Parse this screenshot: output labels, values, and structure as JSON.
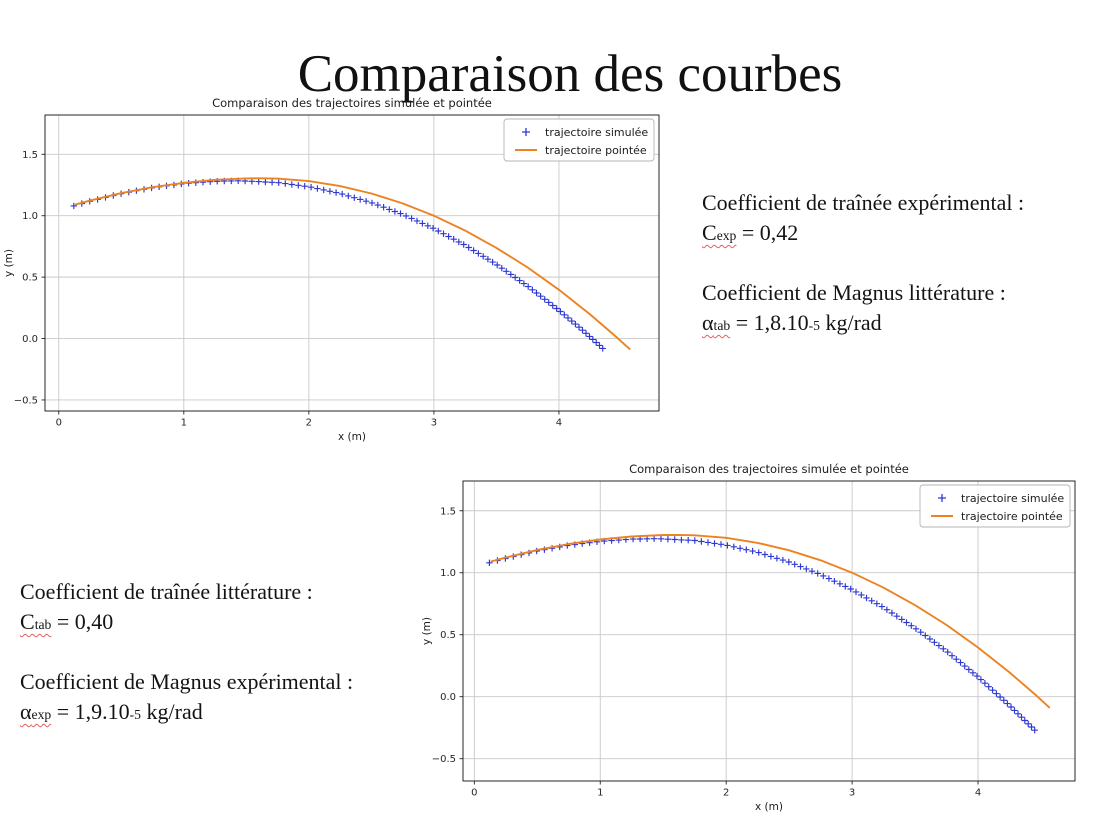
{
  "slide": {
    "title": "Comparaison des courbes",
    "background": "#ffffff"
  },
  "palette": {
    "simulated_blue": "#2f38d2",
    "pointed_orange": "#ec8321",
    "grid": "#c9c9c9",
    "spine": "#242424",
    "tick_text": "#262626",
    "squiggle": "#e35f5f",
    "body_text": "#141414"
  },
  "annotations": {
    "right": {
      "drag_label": "Coefficient de traînée expérimental :",
      "drag_symbol": "C",
      "drag_sub": "exp",
      "drag_value": " = 0,42",
      "magnus_label": "Coefficient de Magnus littérature :",
      "magnus_symbol": "α",
      "magnus_sub": "tab",
      "magnus_value_pre": " = 1,8.10",
      "magnus_exp": "-5",
      "magnus_unit": " kg/rad"
    },
    "left": {
      "drag_label": "Coefficient de traînée littérature :",
      "drag_symbol": "C",
      "drag_sub": "tab",
      "drag_value": " = 0,40",
      "magnus_label": "Coefficient de Magnus expérimental :",
      "magnus_symbol": "α",
      "magnus_sub": "exp",
      "magnus_value_pre": " = 1,9.10",
      "magnus_exp": "-5",
      "magnus_unit": " kg/rad"
    }
  },
  "chart_data": [
    {
      "id": "top-left",
      "type": "scatter",
      "title": "Comparaison des trajectoires simulée et pointée",
      "xlabel": "x (m)",
      "ylabel": "y (m)",
      "xlim": [
        -0.11,
        4.8
      ],
      "ylim": [
        -0.59,
        1.82
      ],
      "grid": true,
      "legend_position": "upper right",
      "xticks": [
        {
          "v": 0,
          "label": "0"
        },
        {
          "v": 1,
          "label": "1"
        },
        {
          "v": 2,
          "label": "2"
        },
        {
          "v": 3,
          "label": "3"
        },
        {
          "v": 4,
          "label": "4"
        }
      ],
      "yticks": [
        {
          "v": -0.5,
          "label": "−0.5"
        },
        {
          "v": 0.0,
          "label": "0.0"
        },
        {
          "v": 0.5,
          "label": "0.5"
        },
        {
          "v": 1.0,
          "label": "1.0"
        },
        {
          "v": 1.5,
          "label": "1.5"
        }
      ],
      "series": [
        {
          "name": "trajectoire simulée",
          "plot": "scatter",
          "marker": "+",
          "color": "#2f38d2",
          "n_markers": 95,
          "points": [
            [
              0.12,
              1.08
            ],
            [
              0.25,
              1.118
            ],
            [
              0.5,
              1.18
            ],
            [
              0.75,
              1.228
            ],
            [
              1.0,
              1.262
            ],
            [
              1.25,
              1.28
            ],
            [
              1.45,
              1.285
            ],
            [
              1.75,
              1.27
            ],
            [
              2.0,
              1.236
            ],
            [
              2.25,
              1.181
            ],
            [
              2.5,
              1.106
            ],
            [
              2.75,
              1.011
            ],
            [
              3.0,
              0.895
            ],
            [
              3.25,
              0.759
            ],
            [
              3.5,
              0.603
            ],
            [
              3.75,
              0.426
            ],
            [
              4.0,
              0.23
            ],
            [
              4.2,
              0.058
            ],
            [
              4.35,
              -0.08
            ]
          ]
        },
        {
          "name": "trajectoire pointée",
          "plot": "line",
          "color": "#ec8321",
          "points": [
            [
              0.13,
              1.09
            ],
            [
              0.25,
              1.123
            ],
            [
              0.5,
              1.184
            ],
            [
              0.75,
              1.232
            ],
            [
              1.0,
              1.268
            ],
            [
              1.25,
              1.292
            ],
            [
              1.5,
              1.304
            ],
            [
              1.62,
              1.305
            ],
            [
              1.75,
              1.302
            ],
            [
              2.0,
              1.282
            ],
            [
              2.25,
              1.241
            ],
            [
              2.5,
              1.181
            ],
            [
              2.75,
              1.1
            ],
            [
              3.0,
              1.0
            ],
            [
              3.25,
              0.879
            ],
            [
              3.5,
              0.738
            ],
            [
              3.75,
              0.578
            ],
            [
              4.0,
              0.397
            ],
            [
              4.25,
              0.196
            ],
            [
              4.45,
              0.021
            ],
            [
              4.57,
              -0.09
            ]
          ]
        }
      ]
    },
    {
      "id": "bottom-right",
      "type": "scatter",
      "title": "Comparaison des trajectoires simulée et pointée",
      "xlabel": "x (m)",
      "ylabel": "y (m)",
      "xlim": [
        -0.09,
        4.77
      ],
      "ylim": [
        -0.68,
        1.74
      ],
      "grid": true,
      "legend_position": "upper right",
      "xticks": [
        {
          "v": 0,
          "label": "0"
        },
        {
          "v": 1,
          "label": "1"
        },
        {
          "v": 2,
          "label": "2"
        },
        {
          "v": 3,
          "label": "3"
        },
        {
          "v": 4,
          "label": "4"
        }
      ],
      "yticks": [
        {
          "v": -0.5,
          "label": "−0.5"
        },
        {
          "v": 0.0,
          "label": "0.0"
        },
        {
          "v": 0.5,
          "label": "0.5"
        },
        {
          "v": 1.0,
          "label": "1.0"
        },
        {
          "v": 1.5,
          "label": "1.5"
        }
      ],
      "series": [
        {
          "name": "trajectoire simulée",
          "plot": "scatter",
          "marker": "+",
          "color": "#2f38d2",
          "n_markers": 98,
          "points": [
            [
              0.12,
              1.08
            ],
            [
              0.25,
              1.116
            ],
            [
              0.5,
              1.176
            ],
            [
              0.75,
              1.221
            ],
            [
              1.0,
              1.253
            ],
            [
              1.25,
              1.271
            ],
            [
              1.45,
              1.275
            ],
            [
              1.75,
              1.26
            ],
            [
              2.0,
              1.223
            ],
            [
              2.25,
              1.165
            ],
            [
              2.5,
              1.086
            ],
            [
              2.75,
              0.985
            ],
            [
              3.0,
              0.863
            ],
            [
              3.25,
              0.719
            ],
            [
              3.5,
              0.553
            ],
            [
              3.75,
              0.367
            ],
            [
              4.0,
              0.159
            ],
            [
              4.25,
              -0.071
            ],
            [
              4.45,
              -0.27
            ]
          ]
        },
        {
          "name": "trajectoire pointée",
          "plot": "line",
          "color": "#ec8321",
          "points": [
            [
              0.13,
              1.09
            ],
            [
              0.25,
              1.123
            ],
            [
              0.5,
              1.184
            ],
            [
              0.75,
              1.232
            ],
            [
              1.0,
              1.268
            ],
            [
              1.25,
              1.292
            ],
            [
              1.5,
              1.304
            ],
            [
              1.62,
              1.305
            ],
            [
              1.75,
              1.302
            ],
            [
              2.0,
              1.282
            ],
            [
              2.25,
              1.241
            ],
            [
              2.5,
              1.181
            ],
            [
              2.75,
              1.1
            ],
            [
              3.0,
              1.0
            ],
            [
              3.25,
              0.879
            ],
            [
              3.5,
              0.738
            ],
            [
              3.75,
              0.578
            ],
            [
              4.0,
              0.397
            ],
            [
              4.25,
              0.196
            ],
            [
              4.45,
              0.021
            ],
            [
              4.57,
              -0.09
            ]
          ]
        }
      ]
    }
  ]
}
